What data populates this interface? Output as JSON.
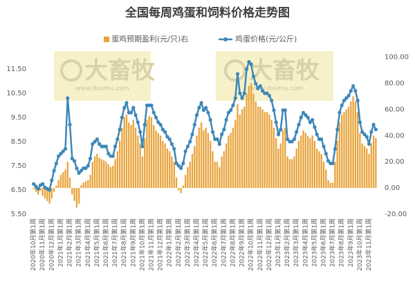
{
  "chart_data": {
    "type": "bar-line",
    "title": "全国每周鸡蛋和饲料价格走势图",
    "watermark": {
      "text": "大畜牧",
      "url": "www.dxumu.com"
    },
    "categories": [
      "2020年10月第1周",
      null,
      null,
      null,
      "2020年11月第1周",
      null,
      null,
      null,
      "2020年12月第1周",
      null,
      null,
      null,
      "2021年1月第1周",
      null,
      null,
      null,
      "2021年2月第1周",
      null,
      null,
      null,
      "2021年3月第1周",
      null,
      null,
      null,
      "2021年4月第1周",
      null,
      null,
      null,
      "2021年5月第1周",
      null,
      null,
      null,
      "2021年6月第1周",
      null,
      null,
      null,
      "2021年7月第1周",
      null,
      null,
      null,
      "2021年8月第1周",
      null,
      null,
      null,
      "2021年9月第1周",
      null,
      null,
      null,
      "2021年10月第1周",
      null,
      null,
      null,
      "2021年11月第1周",
      null,
      null,
      null,
      "2021年12月第1周",
      null,
      null,
      null,
      "2022年1月第1周",
      null,
      null,
      null,
      "2022年2月第1周",
      null,
      null,
      null,
      "2022年3月第1周",
      null,
      null,
      null,
      "2022年4月第1周",
      null,
      null,
      null,
      "2022年5月第1周",
      null,
      null,
      null,
      "2022年6月第1周",
      null,
      null,
      null,
      "2022年7月第1周",
      null,
      null,
      null,
      "2022年8月第1周",
      null,
      null,
      null,
      "2022年9月第1周",
      null,
      null,
      null,
      "2022年10月第1周",
      null,
      null,
      null,
      "2022年11月第1周",
      null,
      null,
      null,
      "2022年12月第1周",
      null,
      null,
      null,
      "2023年1月第1周",
      null,
      null,
      null,
      "2023年2月第1周",
      null,
      null,
      null,
      "2023年3月第1周",
      null,
      null,
      null,
      "2023年4月第1周",
      null,
      null,
      null,
      "2023年5月第1周",
      null,
      null,
      null,
      "2023年6月第1周",
      null,
      null,
      null,
      "2023年7月第1周",
      null,
      null,
      null,
      "2023年8月第1周",
      null,
      null,
      null,
      "2023年9月第1周",
      null,
      null,
      null,
      "2023年10月第1周",
      null,
      null,
      null,
      "2023年11月第1周",
      null,
      null,
      null
    ],
    "series": [
      {
        "name": "蛋鸡预期盈利(元/只)右",
        "color": "#e8a33a",
        "kind": "bar",
        "axis": "y2",
        "values": [
          -1,
          -3,
          -5,
          -2,
          -6,
          -8,
          -10,
          -12,
          -8,
          -3,
          2,
          6,
          10,
          12,
          14,
          20,
          8,
          -5,
          -10,
          -15,
          -12,
          2,
          4,
          5,
          6,
          10,
          20,
          24,
          26,
          23,
          22,
          21,
          20,
          18,
          16,
          17,
          22,
          28,
          36,
          46,
          54,
          56,
          50,
          48,
          52,
          46,
          40,
          34,
          24,
          38,
          52,
          55,
          54,
          48,
          44,
          42,
          40,
          36,
          34,
          30,
          28,
          24,
          20,
          8,
          -2,
          -4,
          2,
          10,
          16,
          20,
          26,
          32,
          40,
          46,
          50,
          44,
          46,
          42,
          36,
          28,
          20,
          20,
          16,
          24,
          28,
          34,
          40,
          42,
          46,
          52,
          64,
          56,
          60,
          62,
          72,
          78,
          80,
          72,
          66,
          62,
          62,
          60,
          58,
          58,
          56,
          52,
          46,
          38,
          30,
          34,
          44,
          46,
          24,
          22,
          22,
          24,
          30,
          36,
          40,
          44,
          42,
          40,
          38,
          40,
          36,
          30,
          28,
          26,
          20,
          14,
          6,
          4,
          4,
          20,
          36,
          50,
          56,
          58,
          60,
          62,
          66,
          70,
          66,
          58,
          42,
          34,
          32,
          30,
          26,
          34,
          40,
          38
        ]
      },
      {
        "name": "鸡蛋价格(元/公斤)",
        "color": "#3d87b8",
        "kind": "line",
        "values": [
          6.75,
          6.65,
          6.55,
          6.7,
          6.75,
          6.6,
          6.55,
          6.5,
          6.9,
          7.3,
          7.6,
          7.9,
          8.0,
          8.1,
          8.2,
          10.3,
          9.2,
          7.8,
          7.7,
          7.4,
          7.2,
          7.3,
          7.4,
          7.4,
          7.5,
          7.8,
          8.4,
          8.5,
          8.6,
          8.4,
          8.3,
          8.3,
          8.3,
          8.0,
          7.9,
          7.9,
          8.3,
          8.6,
          9.0,
          9.5,
          9.9,
          10.1,
          9.7,
          9.7,
          9.9,
          9.6,
          9.3,
          8.9,
          8.3,
          9.2,
          10.0,
          10.0,
          10.0,
          9.7,
          9.5,
          9.3,
          9.2,
          9.0,
          8.9,
          8.7,
          8.6,
          8.4,
          8.2,
          7.6,
          7.5,
          7.4,
          7.6,
          8.1,
          8.3,
          8.5,
          8.8,
          9.2,
          9.6,
          9.9,
          10.1,
          9.8,
          9.9,
          9.7,
          9.4,
          8.9,
          8.6,
          8.6,
          8.4,
          8.8,
          9.0,
          9.4,
          9.7,
          9.8,
          10.0,
          10.3,
          11.3,
          10.5,
          10.3,
          10.5,
          11.5,
          11.8,
          11.7,
          11.2,
          10.9,
          10.7,
          10.8,
          10.6,
          10.5,
          10.5,
          10.4,
          10.2,
          9.8,
          9.3,
          8.8,
          9.0,
          9.8,
          9.8,
          8.6,
          8.5,
          8.5,
          8.6,
          8.9,
          9.2,
          9.5,
          9.7,
          9.6,
          9.5,
          9.3,
          9.4,
          9.1,
          8.8,
          8.6,
          8.6,
          8.3,
          8.0,
          7.7,
          7.6,
          7.6,
          8.2,
          9.0,
          9.7,
          10.0,
          10.2,
          10.3,
          10.4,
          10.6,
          10.8,
          10.6,
          10.2,
          9.3,
          8.9,
          8.8,
          8.7,
          8.4,
          8.9,
          9.2,
          9.0
        ]
      }
    ],
    "ylim": [
      5.5,
      12.0
    ],
    "yticks": [
      {
        "value": 5.5,
        "label": "5.50"
      },
      {
        "value": 6.5,
        "label": "6.50"
      },
      {
        "value": 7.5,
        "label": "7.50"
      },
      {
        "value": 8.5,
        "label": "8.50"
      },
      {
        "value": 9.5,
        "label": "9.50"
      },
      {
        "value": 10.5,
        "label": "10.50"
      },
      {
        "value": 11.5,
        "label": "11.50"
      }
    ],
    "y2lim": [
      -20,
      100
    ],
    "y2ticks": [
      {
        "value": -20,
        "label": "-20.00"
      },
      {
        "value": 0,
        "label": "0.00"
      },
      {
        "value": 20,
        "label": "20.00"
      },
      {
        "value": 40,
        "label": "40.00"
      },
      {
        "value": 60,
        "label": "60.00"
      },
      {
        "value": 80,
        "label": "80.00"
      },
      {
        "value": 100,
        "label": "100.00"
      }
    ]
  }
}
